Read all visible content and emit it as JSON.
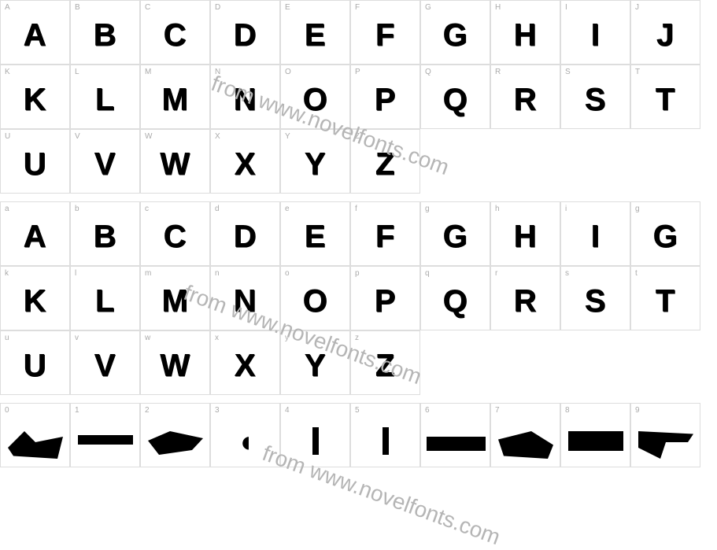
{
  "watermark_text": "from www.novelfonts.com",
  "watermark_color": "#b5b5b5",
  "border_color": "#dddddd",
  "label_color": "#aaaaaa",
  "glyph_color": "#000000",
  "background": "#ffffff",
  "rows": [
    {
      "cells": [
        {
          "key": "A",
          "glyph": "A"
        },
        {
          "key": "B",
          "glyph": "B"
        },
        {
          "key": "C",
          "glyph": "C"
        },
        {
          "key": "D",
          "glyph": "D"
        },
        {
          "key": "E",
          "glyph": "E"
        },
        {
          "key": "F",
          "glyph": "F"
        },
        {
          "key": "G",
          "glyph": "G"
        },
        {
          "key": "H",
          "glyph": "H"
        },
        {
          "key": "I",
          "glyph": "I"
        },
        {
          "key": "J",
          "glyph": "J"
        }
      ]
    },
    {
      "cells": [
        {
          "key": "K",
          "glyph": "K"
        },
        {
          "key": "L",
          "glyph": "L"
        },
        {
          "key": "M",
          "glyph": "M"
        },
        {
          "key": "N",
          "glyph": "N"
        },
        {
          "key": "O",
          "glyph": "O"
        },
        {
          "key": "P",
          "glyph": "P"
        },
        {
          "key": "Q",
          "glyph": "Q"
        },
        {
          "key": "R",
          "glyph": "R"
        },
        {
          "key": "S",
          "glyph": "S"
        },
        {
          "key": "T",
          "glyph": "T"
        }
      ]
    },
    {
      "cells": [
        {
          "key": "U",
          "glyph": "U"
        },
        {
          "key": "V",
          "glyph": "V"
        },
        {
          "key": "W",
          "glyph": "W"
        },
        {
          "key": "X",
          "glyph": "X"
        },
        {
          "key": "Y",
          "glyph": "Y"
        },
        {
          "key": "Z",
          "glyph": "Z"
        },
        {
          "empty": true
        },
        {
          "empty": true
        },
        {
          "empty": true
        },
        {
          "empty": true
        }
      ]
    },
    {
      "spacer": true
    },
    {
      "cells": [
        {
          "key": "a",
          "glyph": "A"
        },
        {
          "key": "b",
          "glyph": "B"
        },
        {
          "key": "c",
          "glyph": "C"
        },
        {
          "key": "d",
          "glyph": "D"
        },
        {
          "key": "e",
          "glyph": "E"
        },
        {
          "key": "f",
          "glyph": "F"
        },
        {
          "key": "g",
          "glyph": "G"
        },
        {
          "key": "h",
          "glyph": "H"
        },
        {
          "key": "i",
          "glyph": "I"
        },
        {
          "key": "g",
          "glyph": "G"
        }
      ]
    },
    {
      "cells": [
        {
          "key": "k",
          "glyph": "K"
        },
        {
          "key": "l",
          "glyph": "L"
        },
        {
          "key": "m",
          "glyph": "M"
        },
        {
          "key": "n",
          "glyph": "N"
        },
        {
          "key": "o",
          "glyph": "O"
        },
        {
          "key": "p",
          "glyph": "P"
        },
        {
          "key": "q",
          "glyph": "Q"
        },
        {
          "key": "r",
          "glyph": "R"
        },
        {
          "key": "s",
          "glyph": "S"
        },
        {
          "key": "t",
          "glyph": "T"
        }
      ]
    },
    {
      "cells": [
        {
          "key": "u",
          "glyph": "U"
        },
        {
          "key": "v",
          "glyph": "V"
        },
        {
          "key": "w",
          "glyph": "W"
        },
        {
          "key": "x",
          "glyph": "X"
        },
        {
          "key": "y",
          "glyph": "Y"
        },
        {
          "key": "z",
          "glyph": "Z"
        },
        {
          "empty": true
        },
        {
          "empty": true
        },
        {
          "empty": true
        },
        {
          "empty": true
        }
      ]
    },
    {
      "spacer": true
    },
    {
      "cells": [
        {
          "key": "0",
          "glyph_style": "shape-wide"
        },
        {
          "key": "1",
          "glyph_style": "shape-wide"
        },
        {
          "key": "2",
          "glyph_style": "shape-wide"
        },
        {
          "key": "3",
          "glyph_style": "shape-curve"
        },
        {
          "key": "4",
          "glyph_style": "shape-narrow"
        },
        {
          "key": "5",
          "glyph_style": "shape-narrow"
        },
        {
          "key": "6",
          "glyph_style": "shape-wide"
        },
        {
          "key": "7",
          "glyph_style": "shape-wide"
        },
        {
          "key": "8",
          "glyph_style": "shape-wide"
        },
        {
          "key": "9",
          "glyph_style": "shape-wide"
        }
      ]
    }
  ]
}
